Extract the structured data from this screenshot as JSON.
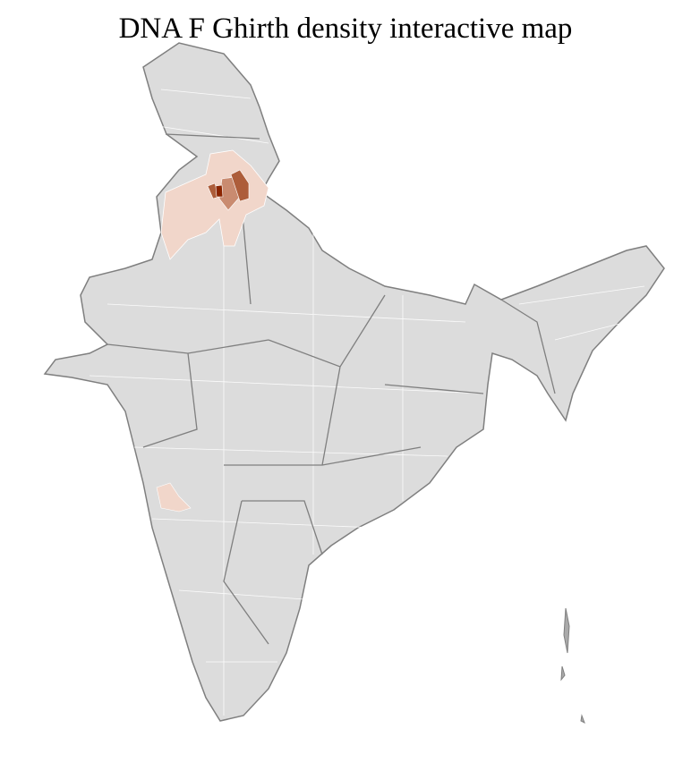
{
  "title": "DNA F Ghirth density interactive map",
  "colors": {
    "base": "#dcdcdc",
    "border": "#7f7f7f",
    "district_line": "#ffffff",
    "low": "#f1d6ca",
    "mid": "#c98b70",
    "high": "#ad5d3a",
    "max": "#8b2500"
  }
}
